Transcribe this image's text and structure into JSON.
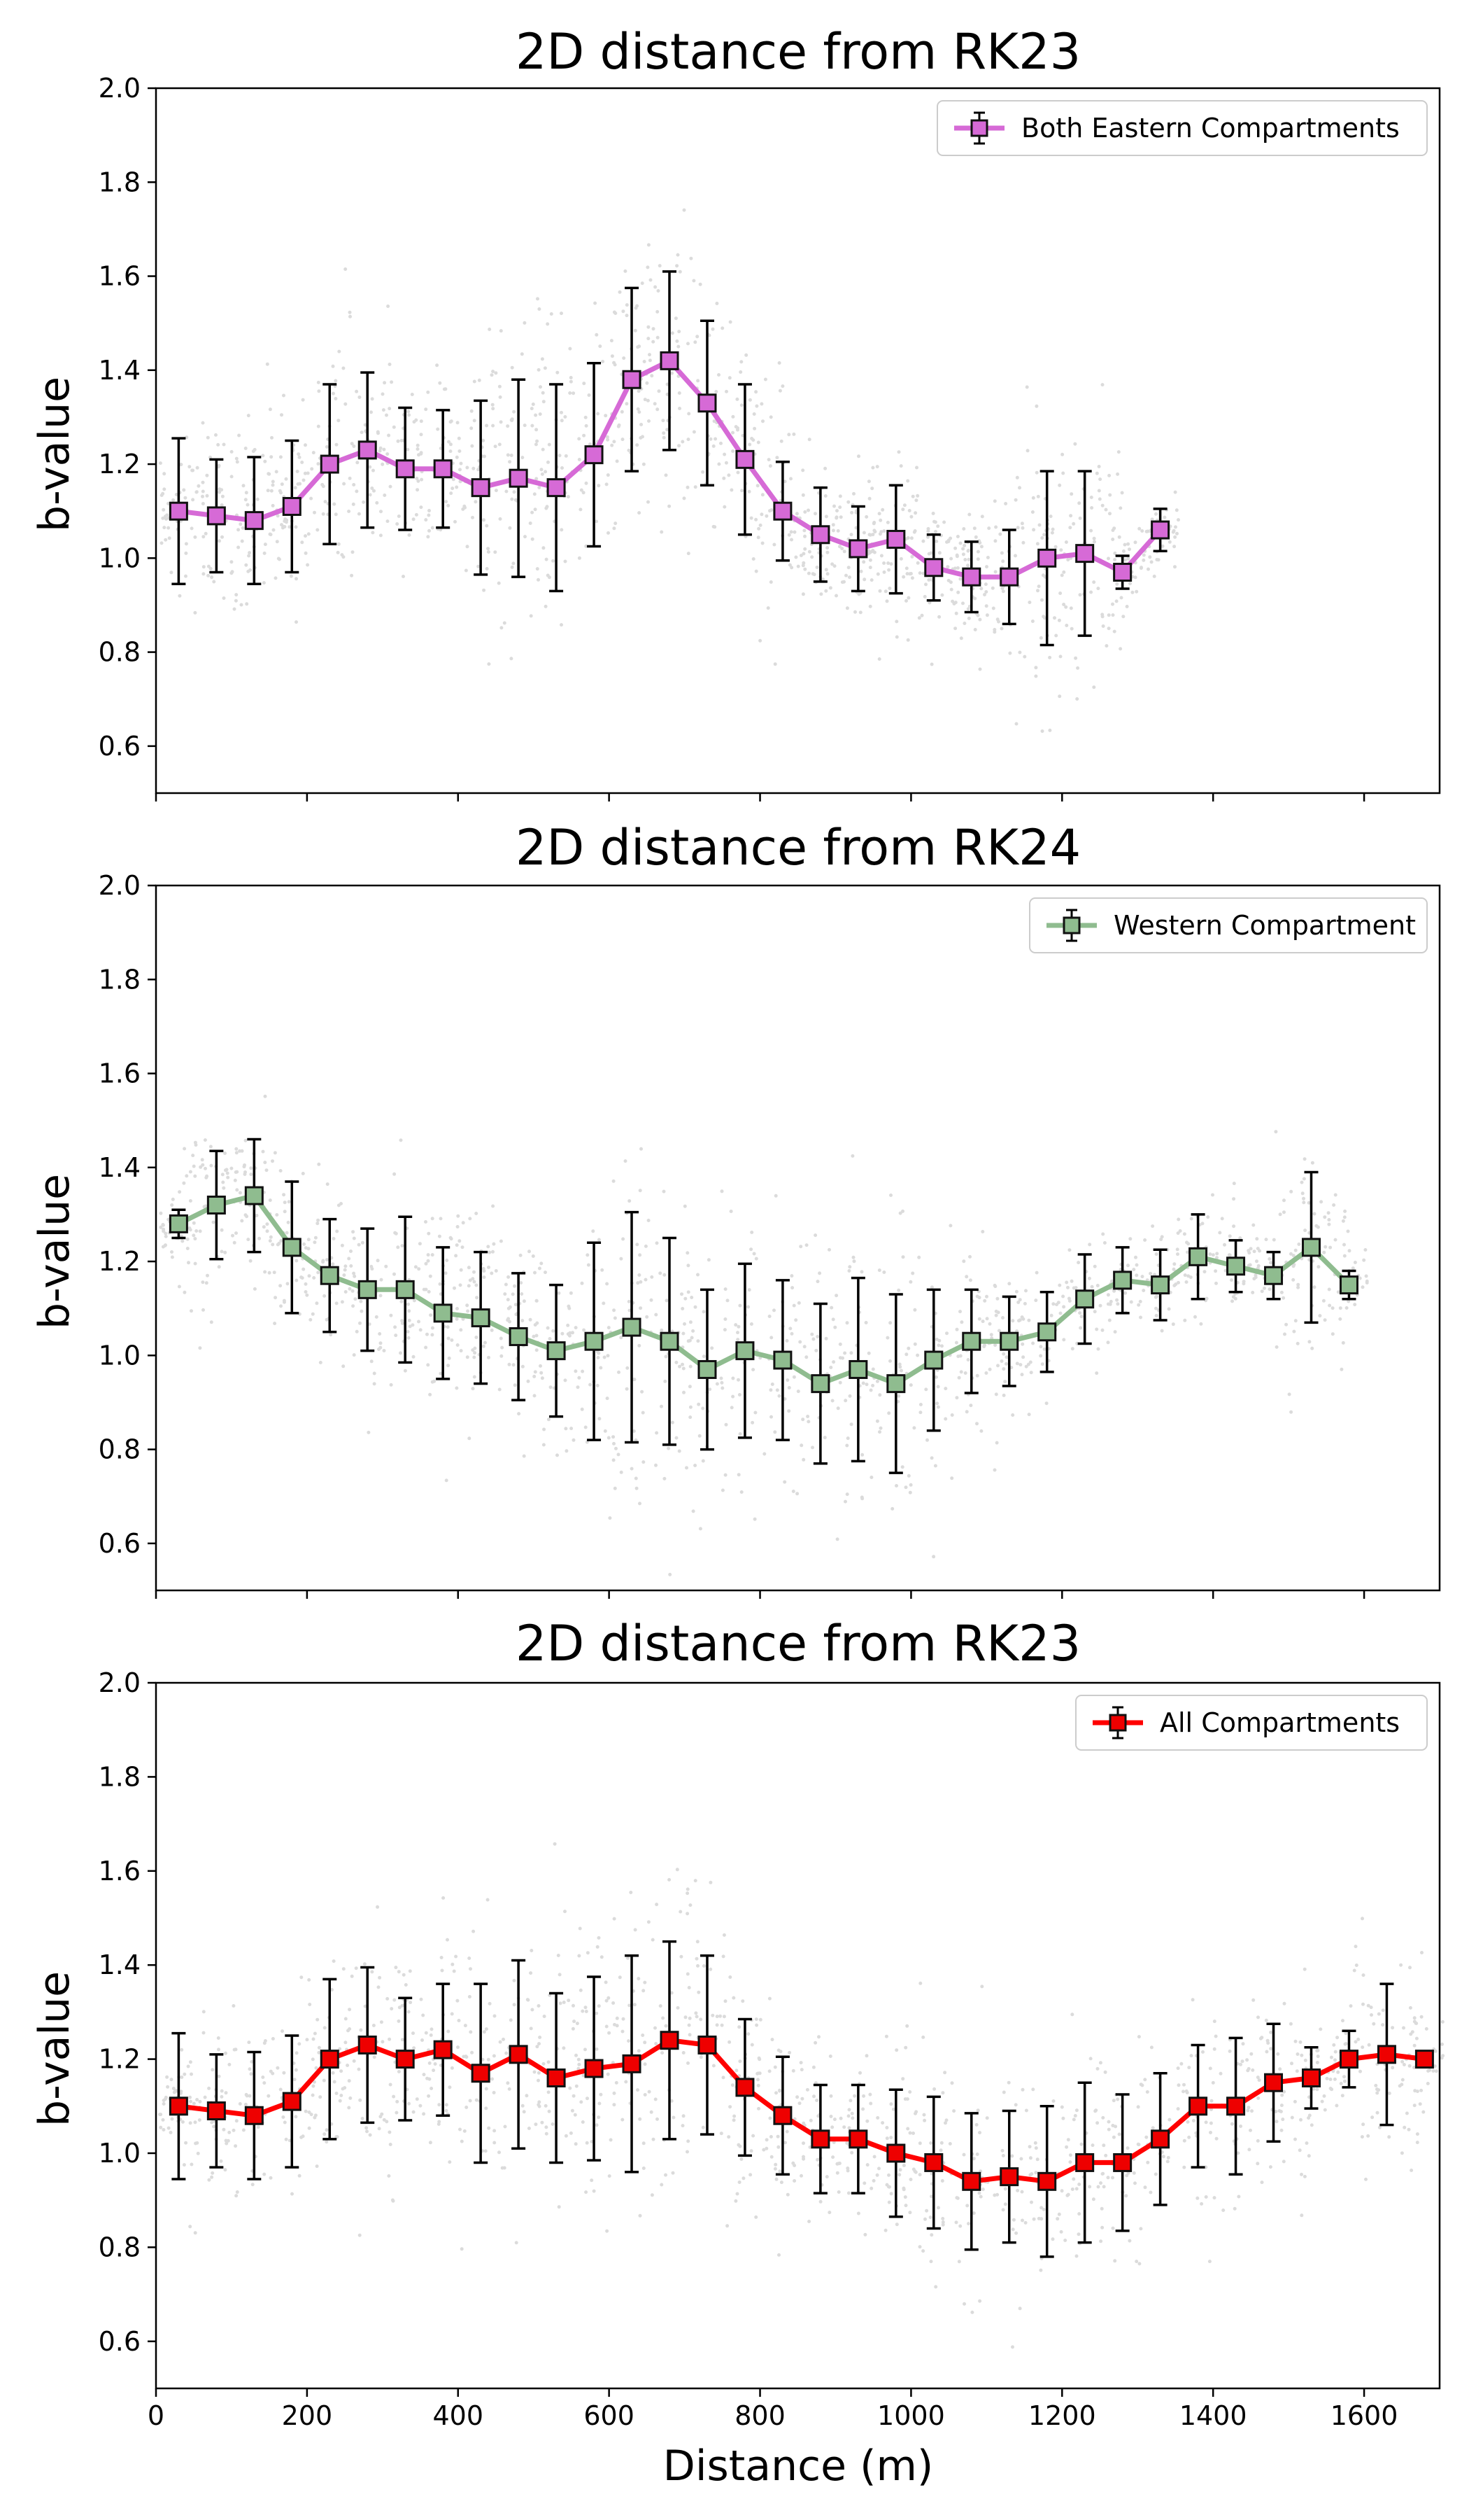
{
  "chart_data": [
    {
      "type": "scatter",
      "title": "2D distance from RK23",
      "xlabel": "",
      "ylabel": "b-value",
      "xlim": [
        0,
        1700
      ],
      "ylim": [
        0.5,
        2.0
      ],
      "xticks": [
        0,
        200,
        400,
        600,
        800,
        1000,
        1200,
        1400,
        1600
      ],
      "yticks": [
        0.6,
        0.8,
        1.0,
        1.2,
        1.4,
        1.6,
        1.8,
        2.0
      ],
      "xticklabels_shown": false,
      "legend_position": "top-right",
      "series": [
        {
          "name": "Both Eastern Compartments",
          "color": "#d66ad6",
          "marker_fill": "#d66ad6",
          "x": [
            30,
            80,
            130,
            180,
            230,
            280,
            330,
            380,
            430,
            480,
            530,
            580,
            630,
            680,
            730,
            780,
            830,
            880,
            930,
            980,
            1030,
            1080,
            1130,
            1180,
            1230,
            1280,
            1330
          ],
          "y": [
            1.1,
            1.09,
            1.08,
            1.11,
            1.2,
            1.23,
            1.19,
            1.19,
            1.15,
            1.17,
            1.15,
            1.22,
            1.38,
            1.42,
            1.33,
            1.21,
            1.1,
            1.05,
            1.02,
            1.04,
            0.98,
            0.96,
            0.96,
            1.0,
            1.01,
            0.97,
            1.06
          ],
          "err": [
            0.155,
            0.12,
            0.135,
            0.14,
            0.17,
            0.165,
            0.13,
            0.125,
            0.185,
            0.21,
            0.22,
            0.195,
            0.195,
            0.19,
            0.175,
            0.16,
            0.105,
            0.1,
            0.09,
            0.115,
            0.07,
            0.075,
            0.1,
            0.185,
            0.175,
            0.035,
            0.045
          ]
        }
      ]
    },
    {
      "type": "scatter",
      "title": "2D distance from RK24",
      "xlabel": "",
      "ylabel": "b-value",
      "xlim": [
        0,
        1700
      ],
      "ylim": [
        0.5,
        2.0
      ],
      "xticks": [
        0,
        200,
        400,
        600,
        800,
        1000,
        1200,
        1400,
        1600
      ],
      "yticks": [
        0.6,
        0.8,
        1.0,
        1.2,
        1.4,
        1.6,
        1.8,
        2.0
      ],
      "xticklabels_shown": false,
      "legend_position": "top-right",
      "series": [
        {
          "name": "Western Compartment",
          "color": "#8fbc8f",
          "marker_fill": "#8fbc8f",
          "x": [
            30,
            80,
            130,
            180,
            230,
            280,
            330,
            380,
            430,
            480,
            530,
            580,
            630,
            680,
            730,
            780,
            830,
            880,
            930,
            980,
            1030,
            1080,
            1130,
            1180,
            1230,
            1280,
            1330,
            1380,
            1430,
            1480,
            1530,
            1580
          ],
          "y": [
            1.28,
            1.32,
            1.34,
            1.23,
            1.17,
            1.14,
            1.14,
            1.09,
            1.08,
            1.04,
            1.01,
            1.03,
            1.06,
            1.03,
            0.97,
            1.01,
            0.99,
            0.94,
            0.97,
            0.94,
            0.99,
            1.03,
            1.03,
            1.05,
            1.12,
            1.16,
            1.15,
            1.21,
            1.19,
            1.17,
            1.23,
            1.15
          ],
          "err": [
            0.03,
            0.115,
            0.12,
            0.14,
            0.12,
            0.13,
            0.155,
            0.14,
            0.14,
            0.135,
            0.14,
            0.21,
            0.245,
            0.22,
            0.17,
            0.185,
            0.17,
            0.17,
            0.195,
            0.19,
            0.15,
            0.11,
            0.095,
            0.085,
            0.095,
            0.07,
            0.075,
            0.09,
            0.055,
            0.05,
            0.16,
            0.03
          ]
        }
      ]
    },
    {
      "type": "scatter",
      "title": "2D distance from RK23",
      "xlabel": "Distance (m)",
      "ylabel": "b-value",
      "xlim": [
        0,
        1700
      ],
      "ylim": [
        0.5,
        2.0
      ],
      "xticks": [
        0,
        200,
        400,
        600,
        800,
        1000,
        1200,
        1400,
        1600
      ],
      "yticks": [
        0.6,
        0.8,
        1.0,
        1.2,
        1.4,
        1.6,
        1.8,
        2.0
      ],
      "xticklabels_shown": true,
      "legend_position": "top-right",
      "series": [
        {
          "name": "All Compartments",
          "color": "#ff0000",
          "marker_fill": "#ee0000",
          "x": [
            30,
            80,
            130,
            180,
            230,
            280,
            330,
            380,
            430,
            480,
            530,
            580,
            630,
            680,
            730,
            780,
            830,
            880,
            930,
            980,
            1030,
            1080,
            1130,
            1180,
            1230,
            1280,
            1330,
            1380,
            1430,
            1480,
            1530,
            1580,
            1630,
            1680
          ],
          "y": [
            1.1,
            1.09,
            1.08,
            1.11,
            1.2,
            1.23,
            1.2,
            1.22,
            1.17,
            1.21,
            1.16,
            1.18,
            1.19,
            1.24,
            1.23,
            1.14,
            1.08,
            1.03,
            1.03,
            1.0,
            0.98,
            0.94,
            0.95,
            0.94,
            0.98,
            0.98,
            1.03,
            1.1,
            1.1,
            1.15,
            1.16,
            1.2,
            1.21,
            1.2
          ],
          "err": [
            0.155,
            0.12,
            0.135,
            0.14,
            0.17,
            0.165,
            0.13,
            0.14,
            0.19,
            0.2,
            0.18,
            0.195,
            0.23,
            0.21,
            0.19,
            0.145,
            0.125,
            0.115,
            0.115,
            0.135,
            0.14,
            0.145,
            0.14,
            0.16,
            0.17,
            0.145,
            0.14,
            0.13,
            0.145,
            0.125,
            0.065,
            0.06,
            0.15,
            0.0
          ]
        }
      ]
    }
  ]
}
